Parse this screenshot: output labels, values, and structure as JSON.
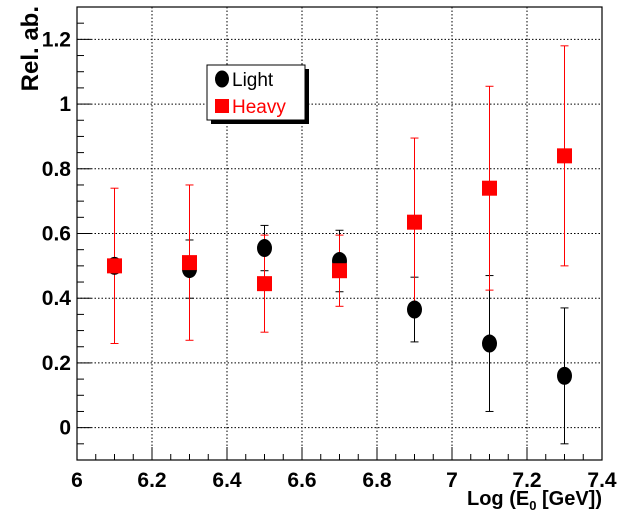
{
  "chart_data": {
    "type": "scatter",
    "title": "",
    "xlabel_main": "Log (E",
    "xlabel_sub": "0",
    "xlabel_tail": " [GeV])",
    "ylabel": "Rel. ab.",
    "xlim": [
      6.0,
      7.4
    ],
    "ylim": [
      -0.1,
      1.3
    ],
    "grid": true,
    "grid_style": "dotted",
    "legend_position": "top-left",
    "x_ticks": [
      6.0,
      6.2,
      6.4,
      6.6,
      6.8,
      7.0,
      7.2,
      7.4
    ],
    "x_tick_labels": [
      "6",
      "6.2",
      "6.4",
      "6.6",
      "6.8",
      "7",
      "7.2",
      "7.4"
    ],
    "y_ticks": [
      0.0,
      0.2,
      0.4,
      0.6,
      0.8,
      1.0,
      1.2
    ],
    "y_tick_labels": [
      "0",
      "0.2",
      "0.4",
      "0.6",
      "0.8",
      "1",
      "1.2"
    ],
    "series": [
      {
        "name": "Light",
        "color": "#000000",
        "marker": "circle",
        "x": [
          6.1,
          6.3,
          6.5,
          6.7,
          6.9,
          7.1,
          7.3
        ],
        "y": [
          0.5,
          0.49,
          0.555,
          0.515,
          0.365,
          0.26,
          0.16
        ],
        "err_low": [
          0.5,
          0.4,
          0.485,
          0.42,
          0.265,
          0.05,
          -0.05
        ],
        "err_high": [
          0.5,
          0.58,
          0.625,
          0.61,
          0.465,
          0.47,
          0.37
        ]
      },
      {
        "name": "Heavy",
        "color": "#ff0000",
        "marker": "square",
        "x": [
          6.1,
          6.3,
          6.5,
          6.7,
          6.9,
          7.1,
          7.3
        ],
        "y": [
          0.5,
          0.51,
          0.445,
          0.485,
          0.635,
          0.74,
          0.84
        ],
        "err_low": [
          0.26,
          0.27,
          0.295,
          0.375,
          0.375,
          0.425,
          0.5
        ],
        "err_high": [
          0.74,
          0.75,
          0.595,
          0.595,
          0.895,
          1.055,
          1.18
        ]
      }
    ]
  }
}
